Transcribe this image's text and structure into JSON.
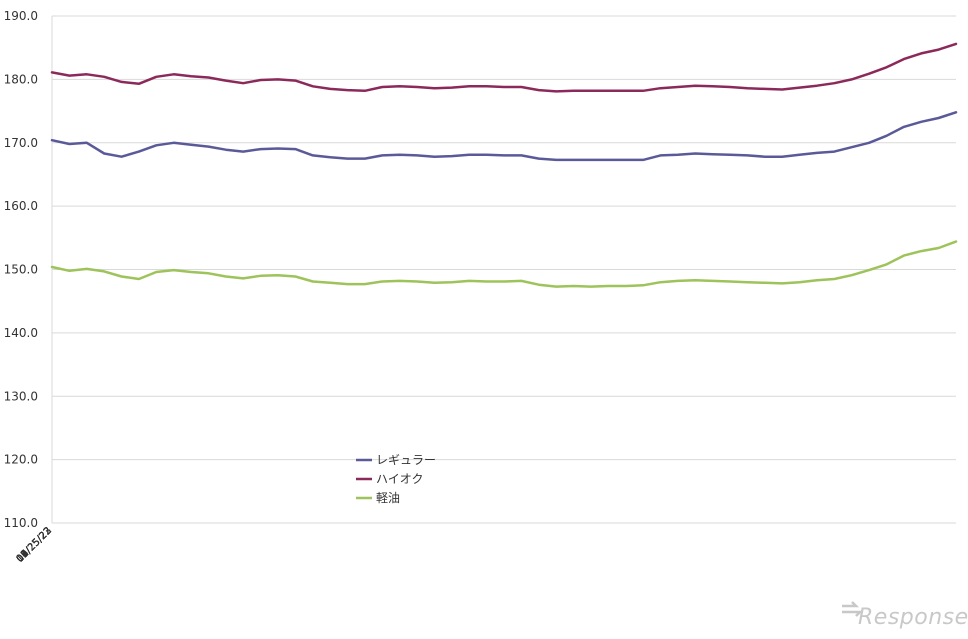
{
  "chart_data": {
    "type": "line",
    "x": [
      "07/25/22",
      "08/01/22",
      "08/08/22",
      "08/15/22",
      "08/22/22",
      "08/29/22",
      "09/05/22",
      "09/12/22",
      "09/19/22",
      "09/26/22",
      "10/03/22",
      "10/10/22",
      "10/17/22",
      "10/24/22",
      "10/31/22",
      "11/07/22",
      "11/14/22",
      "11/21/22",
      "11/28/22",
      "12/05/22",
      "12/12/22",
      "12/19/22",
      "12/26/22",
      "01/02/23",
      "01/09/23",
      "01/16/23",
      "01/23/23",
      "01/30/23",
      "02/06/23",
      "02/13/23",
      "02/20/23",
      "02/27/23",
      "03/06/23",
      "03/13/23",
      "03/20/23",
      "03/27/23",
      "04/03/23",
      "04/10/23",
      "04/17/23",
      "04/24/23",
      "05/01/23",
      "05/08/23",
      "05/15/23",
      "05/22/23",
      "05/29/23",
      "06/05/23",
      "06/12/23",
      "06/19/23",
      "06/26/23",
      "07/03/23",
      "07/10/23",
      "07/17/23",
      "07/24/23"
    ],
    "x_ticks": [
      "07/25/22",
      "08/25/22",
      "09/25/22",
      "10/25/22",
      "11/25/22",
      "12/25/22",
      "01/25/23",
      "02/25/23",
      "03/25/23",
      "04/25/23",
      "05/25/23",
      "06/25/23"
    ],
    "series": [
      {
        "name": "レギュラー",
        "color": "#5b5a99",
        "values": [
          170.4,
          169.8,
          170.0,
          168.3,
          167.8,
          168.6,
          169.6,
          170.0,
          169.7,
          169.4,
          168.9,
          168.6,
          169.0,
          169.1,
          169.0,
          168.0,
          167.7,
          167.5,
          167.5,
          168.0,
          168.1,
          168.0,
          167.8,
          167.9,
          168.1,
          168.1,
          168.0,
          168.0,
          167.5,
          167.3,
          167.3,
          167.3,
          167.3,
          167.3,
          167.3,
          168.0,
          168.1,
          168.3,
          168.2,
          168.1,
          168.0,
          167.8,
          167.8,
          168.1,
          168.4,
          168.6,
          169.3,
          170.0,
          171.1,
          172.5,
          173.3,
          173.9,
          174.8
        ]
      },
      {
        "name": "ハイオク",
        "color": "#8b2a5a",
        "values": [
          181.1,
          180.6,
          180.8,
          180.4,
          179.6,
          179.3,
          180.4,
          180.8,
          180.5,
          180.3,
          179.8,
          179.4,
          179.9,
          180.0,
          179.8,
          178.9,
          178.5,
          178.3,
          178.2,
          178.8,
          178.9,
          178.8,
          178.6,
          178.7,
          178.9,
          178.9,
          178.8,
          178.8,
          178.3,
          178.1,
          178.2,
          178.2,
          178.2,
          178.2,
          178.2,
          178.6,
          178.8,
          179.0,
          178.9,
          178.8,
          178.6,
          178.5,
          178.4,
          178.7,
          179.0,
          179.4,
          180.0,
          180.9,
          181.9,
          183.2,
          184.1,
          184.7,
          185.6
        ]
      },
      {
        "name": "軽油",
        "color": "#9dc35a",
        "values": [
          150.4,
          149.8,
          150.1,
          149.7,
          148.9,
          148.5,
          149.6,
          149.9,
          149.6,
          149.4,
          148.9,
          148.6,
          149.0,
          149.1,
          148.9,
          148.1,
          147.9,
          147.7,
          147.7,
          148.1,
          148.2,
          148.1,
          147.9,
          148.0,
          148.2,
          148.1,
          148.1,
          148.2,
          147.6,
          147.3,
          147.4,
          147.3,
          147.4,
          147.4,
          147.5,
          148.0,
          148.2,
          148.3,
          148.2,
          148.1,
          148.0,
          147.9,
          147.8,
          148.0,
          148.3,
          148.5,
          149.1,
          149.9,
          150.8,
          152.2,
          152.9,
          153.4,
          154.4
        ]
      }
    ],
    "title": "",
    "xlabel": "",
    "ylabel": "",
    "ylim": [
      110,
      190
    ],
    "y_ticks": [
      "110.0",
      "120.0",
      "130.0",
      "140.0",
      "150.0",
      "160.0",
      "170.0",
      "180.0",
      "190.0"
    ],
    "grid": "horizontal",
    "legend_position": "bottom-center"
  },
  "watermark": "Response."
}
